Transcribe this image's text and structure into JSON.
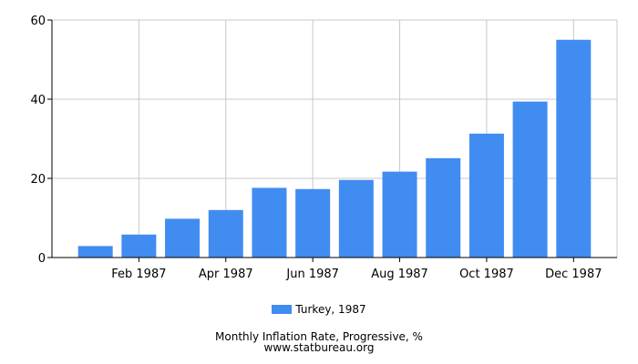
{
  "chart_data": {
    "type": "bar",
    "title": "Monthly Inflation Rate, Progressive, %",
    "xlabel": "",
    "ylabel": "",
    "categories": [
      "Jan 1987",
      "Feb 1987",
      "Mar 1987",
      "Apr 1987",
      "May 1987",
      "Jun 1987",
      "Jul 1987",
      "Aug 1987",
      "Sep 1987",
      "Oct 1987",
      "Nov 1987",
      "Dec 1987"
    ],
    "x_tick_labels": [
      "Feb 1987",
      "Apr 1987",
      "Jun 1987",
      "Aug 1987",
      "Oct 1987",
      "Dec 1987"
    ],
    "series": [
      {
        "name": "Turkey, 1987",
        "color": "#418cf0",
        "values": [
          2.9,
          5.8,
          9.8,
          12.0,
          17.6,
          17.3,
          19.6,
          21.7,
          25.1,
          31.3,
          39.4,
          55.0
        ]
      }
    ],
    "ylim": [
      0,
      60
    ],
    "y_ticks": [
      0,
      20,
      40,
      60
    ],
    "grid": true,
    "legend": "bottom-center"
  },
  "footer": {
    "title": "Monthly Inflation Rate, Progressive, %",
    "source": "www.statbureau.org"
  }
}
